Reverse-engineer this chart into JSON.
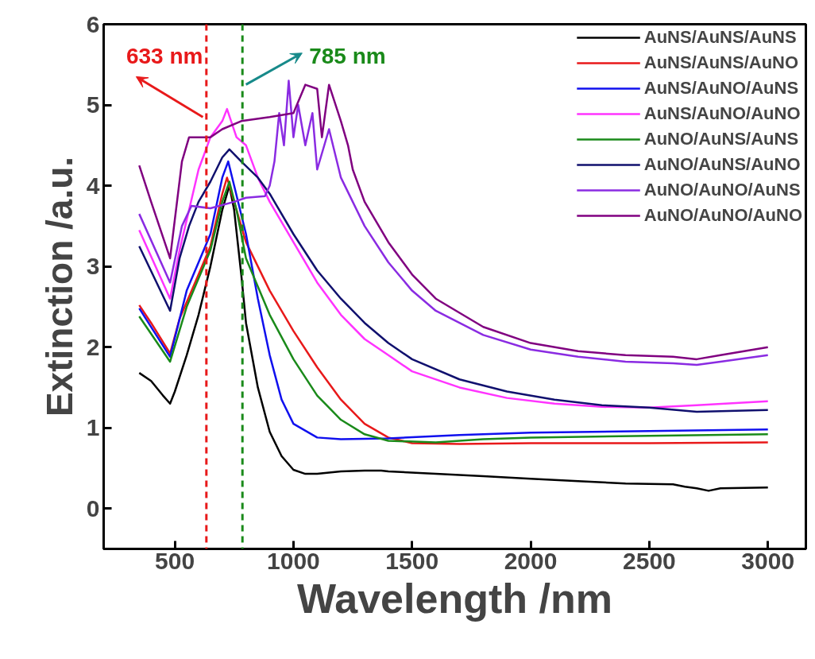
{
  "chart_data": {
    "type": "line",
    "xlabel": "Wavelength /nm",
    "ylabel": "Extinction /a.u.",
    "xlim": [
      200,
      3160
    ],
    "ylim": [
      -0.5,
      6
    ],
    "xticks": [
      500,
      1000,
      1500,
      2000,
      2500,
      3000
    ],
    "yticks": [
      0,
      1,
      2,
      3,
      4,
      5,
      6
    ],
    "grid": false,
    "legend": "top right",
    "marker": "none",
    "line_style": "solid",
    "ref_lines": [
      {
        "axis": "x",
        "value": 633,
        "label": "633 nm",
        "color": "#e8191a",
        "line_style": "dashed"
      },
      {
        "axis": "x",
        "value": 785,
        "label": "785 nm",
        "color": "#1a8a1a",
        "line_style": "dashed"
      }
    ],
    "series": [
      {
        "name": "AuNS/AuNS/AuNS",
        "color": "#000000",
        "x": [
          350,
          400,
          450,
          480,
          500,
          550,
          600,
          650,
          700,
          730,
          750,
          780,
          800,
          850,
          900,
          950,
          1000,
          1050,
          1100,
          1200,
          1300,
          1370,
          1400,
          1600,
          1800,
          2000,
          2200,
          2400,
          2600,
          2650,
          2700,
          2750,
          2800,
          3000
        ],
        "values": [
          1.68,
          1.58,
          1.4,
          1.3,
          1.45,
          1.9,
          2.4,
          3.0,
          3.7,
          4.0,
          3.7,
          2.9,
          2.3,
          1.5,
          0.95,
          0.65,
          0.48,
          0.43,
          0.43,
          0.46,
          0.47,
          0.47,
          0.46,
          0.43,
          0.4,
          0.37,
          0.34,
          0.31,
          0.3,
          0.27,
          0.25,
          0.22,
          0.25,
          0.26
        ]
      },
      {
        "name": "AuNS/AuNS/AuNO",
        "color": "#e8191a",
        "x": [
          350,
          400,
          480,
          520,
          600,
          650,
          700,
          720,
          750,
          800,
          850,
          900,
          1000,
          1100,
          1200,
          1300,
          1400,
          1500,
          1700,
          2000,
          2500,
          3000
        ],
        "values": [
          2.52,
          2.3,
          1.92,
          2.35,
          2.9,
          3.25,
          3.9,
          4.1,
          3.8,
          3.3,
          3.0,
          2.7,
          2.2,
          1.75,
          1.35,
          1.05,
          0.88,
          0.81,
          0.8,
          0.81,
          0.81,
          0.82
        ]
      },
      {
        "name": "AuNS/AuNO/AuNS",
        "color": "#1010ee",
        "x": [
          350,
          480,
          550,
          650,
          700,
          725,
          750,
          800,
          850,
          900,
          950,
          1000,
          1100,
          1200,
          1400,
          1700,
          2000,
          2500,
          3000
        ],
        "values": [
          2.48,
          1.88,
          2.7,
          3.4,
          4.1,
          4.3,
          4.0,
          3.4,
          2.6,
          1.9,
          1.35,
          1.05,
          0.88,
          0.86,
          0.87,
          0.91,
          0.94,
          0.96,
          0.98
        ]
      },
      {
        "name": "AuNS/AuNO/AuNO",
        "color": "#ff33ff",
        "x": [
          350,
          480,
          520,
          600,
          650,
          700,
          720,
          760,
          800,
          850,
          900,
          1000,
          1100,
          1200,
          1300,
          1400,
          1500,
          1700,
          1900,
          2100,
          2300,
          2500,
          2700,
          3000
        ],
        "values": [
          3.45,
          2.6,
          3.2,
          4.2,
          4.6,
          4.8,
          4.95,
          4.6,
          4.5,
          4.1,
          3.8,
          3.3,
          2.8,
          2.4,
          2.1,
          1.9,
          1.7,
          1.5,
          1.37,
          1.3,
          1.26,
          1.25,
          1.28,
          1.33
        ]
      },
      {
        "name": "AuNO/AuNS/AuNS",
        "color": "#1a8a1a",
        "x": [
          350,
          480,
          550,
          650,
          700,
          730,
          760,
          800,
          850,
          900,
          1000,
          1100,
          1200,
          1300,
          1400,
          1600,
          1800,
          2000,
          2500,
          3000
        ],
        "values": [
          2.38,
          1.82,
          2.5,
          3.2,
          3.8,
          4.05,
          3.7,
          3.1,
          2.75,
          2.4,
          1.85,
          1.4,
          1.1,
          0.92,
          0.84,
          0.82,
          0.86,
          0.88,
          0.9,
          0.92
        ]
      },
      {
        "name": "AuNO/AuNS/AuNO",
        "color": "#10106e",
        "x": [
          350,
          480,
          520,
          560,
          600,
          650,
          700,
          730,
          780,
          850,
          900,
          1000,
          1100,
          1200,
          1300,
          1400,
          1500,
          1700,
          1900,
          2100,
          2300,
          2500,
          2700,
          3000
        ],
        "values": [
          3.25,
          2.45,
          3.1,
          3.5,
          3.8,
          4.05,
          4.35,
          4.45,
          4.3,
          4.1,
          3.9,
          3.4,
          2.95,
          2.6,
          2.3,
          2.05,
          1.85,
          1.6,
          1.45,
          1.35,
          1.28,
          1.25,
          1.2,
          1.22
        ]
      },
      {
        "name": "AuNO/AuNO/AuNS",
        "color": "#8a2be2",
        "x": [
          350,
          480,
          530,
          570,
          650,
          750,
          800,
          880,
          900,
          920,
          940,
          960,
          980,
          1000,
          1020,
          1050,
          1080,
          1100,
          1150,
          1200,
          1250,
          1300,
          1400,
          1500,
          1600,
          1800,
          2000,
          2200,
          2400,
          2600,
          2700,
          2800,
          3000
        ],
        "values": [
          3.65,
          2.8,
          3.5,
          3.75,
          3.72,
          3.8,
          3.85,
          3.87,
          4.0,
          4.3,
          4.9,
          4.5,
          5.3,
          4.6,
          5.0,
          4.5,
          4.9,
          4.2,
          4.7,
          4.1,
          3.8,
          3.5,
          3.05,
          2.7,
          2.45,
          2.15,
          1.97,
          1.88,
          1.82,
          1.8,
          1.78,
          1.82,
          1.9
        ]
      },
      {
        "name": "AuNO/AuNO/AuNO",
        "color": "#800080",
        "x": [
          350,
          400,
          480,
          530,
          560,
          600,
          650,
          700,
          780,
          900,
          1000,
          1050,
          1100,
          1120,
          1150,
          1200,
          1230,
          1250,
          1300,
          1400,
          1500,
          1600,
          1800,
          2000,
          2200,
          2400,
          2600,
          2700,
          2800,
          2900,
          3000
        ],
        "values": [
          4.25,
          3.8,
          3.1,
          4.3,
          4.6,
          4.6,
          4.6,
          4.7,
          4.8,
          4.85,
          4.9,
          5.25,
          5.2,
          4.6,
          5.25,
          4.8,
          4.5,
          4.2,
          3.8,
          3.3,
          2.9,
          2.6,
          2.25,
          2.05,
          1.95,
          1.9,
          1.88,
          1.85,
          1.9,
          1.95,
          2.0
        ]
      }
    ]
  }
}
